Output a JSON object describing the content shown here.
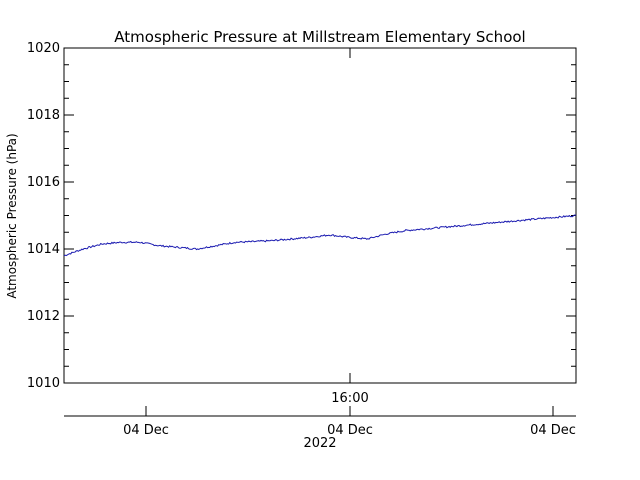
{
  "chart_data": {
    "type": "line",
    "title": "Atmospheric Pressure at Millstream Elementary School",
    "ylabel": "Atmospheric Pressure (hPa)",
    "ylim": [
      1010,
      1020
    ],
    "y_ticks": [
      1010,
      1012,
      1014,
      1016,
      1018,
      1020
    ],
    "y_tick_labels": [
      "1010",
      "1012",
      "1014",
      "1016",
      "1018",
      "1020"
    ],
    "x_time_label": "16:00",
    "x_date_labels": [
      "04 Dec",
      "04 Dec",
      "04 Dec"
    ],
    "x_year_label": "2022",
    "line_color": "#1a1ab0",
    "grid": false,
    "series": [
      {
        "x": [
          "10:00",
          "10:30",
          "11:00",
          "11:30",
          "12:00",
          "12:30",
          "13:00",
          "13:30",
          "14:00",
          "14:30",
          "15:00",
          "15:30",
          "16:00",
          "16:30",
          "17:00",
          "17:30",
          "18:00",
          "18:30",
          "19:00",
          "19:30",
          "20:00",
          "20:30",
          "21:00",
          "21:30",
          "22:00",
          "22:30",
          "23:00",
          "23:30"
        ],
        "y": [
          1013.8,
          1014.0,
          1014.15,
          1014.2,
          1014.2,
          1014.1,
          1014.05,
          1014.0,
          1014.1,
          1014.2,
          1014.22,
          1014.25,
          1014.3,
          1014.35,
          1014.42,
          1014.35,
          1014.3,
          1014.45,
          1014.55,
          1014.6,
          1014.65,
          1014.7,
          1014.75,
          1014.8,
          1014.85,
          1014.9,
          1014.95,
          1015.0
        ]
      }
    ]
  }
}
